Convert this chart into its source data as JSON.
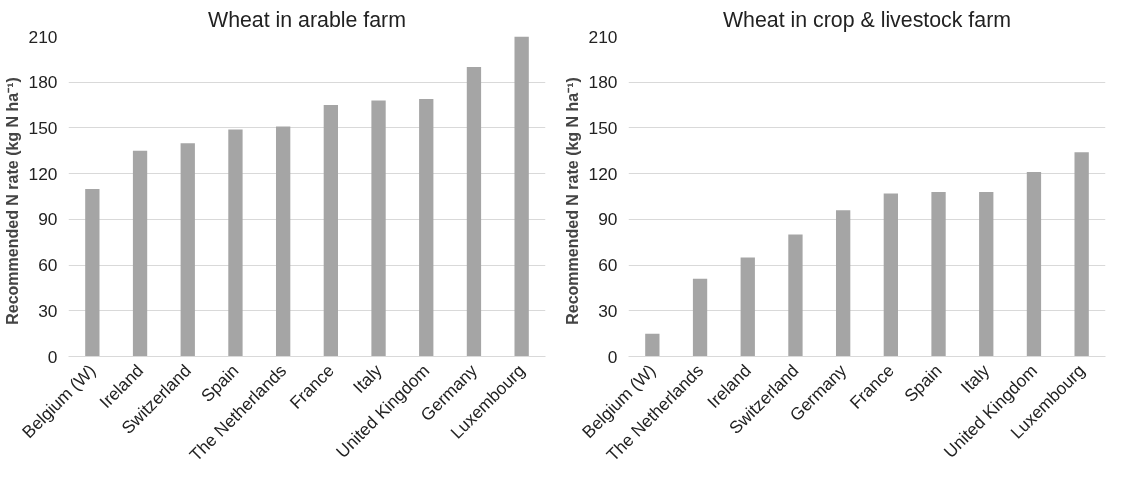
{
  "chart_data": [
    {
      "type": "bar",
      "title": "Wheat in arable farm",
      "ylabel": "Recommended N rate   (kg N ha⁻¹)",
      "categories": [
        "Belgium (W)",
        "Ireland",
        "Switzerland",
        "Spain",
        "The Netherlands",
        "France",
        "Italy",
        "United Kingdom",
        "Germany",
        "Luxembourg"
      ],
      "values": [
        110,
        135,
        140,
        149,
        151,
        165,
        168,
        169,
        190,
        210
      ],
      "color": "#a5a5a5",
      "ylim": [
        0,
        210
      ],
      "yticks": [
        0,
        30,
        60,
        90,
        120,
        150,
        180,
        210
      ],
      "grid": "y"
    },
    {
      "type": "bar",
      "title": "Wheat in crop & livestock farm",
      "ylabel": "Recommended N rate   (kg N ha⁻¹)",
      "categories": [
        "Belgium (W)",
        "The Netherlands",
        "Ireland",
        "Switzerland",
        "Germany",
        "France",
        "Spain",
        "Italy",
        "United Kingdom",
        "Luxembourg"
      ],
      "values": [
        15,
        51,
        65,
        80,
        96,
        107,
        108,
        108,
        121,
        134
      ],
      "color": "#a5a5a5",
      "ylim": [
        0,
        210
      ],
      "yticks": [
        0,
        30,
        60,
        90,
        120,
        150,
        180,
        210
      ],
      "grid": "y"
    }
  ]
}
